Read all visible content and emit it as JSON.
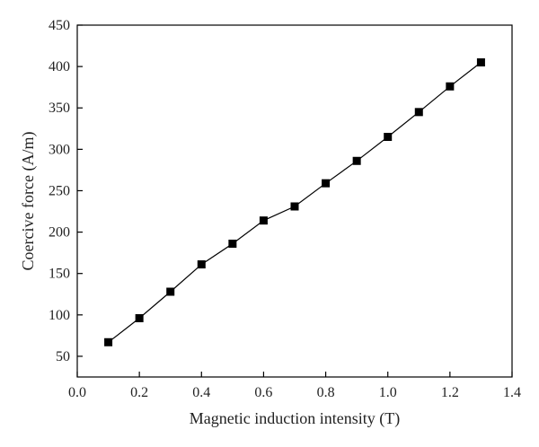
{
  "chart_data": {
    "type": "line",
    "xlabel": "Magnetic induction intensity (T)",
    "ylabel": "Coercive force (A/m)",
    "xlim": [
      0.0,
      1.4
    ],
    "ylim": [
      25,
      450
    ],
    "x_ticks": [
      "0.0",
      "0.2",
      "0.4",
      "0.6",
      "0.8",
      "1.0",
      "1.2",
      "1.4"
    ],
    "y_ticks": [
      "50",
      "100",
      "150",
      "200",
      "250",
      "300",
      "350",
      "400",
      "450"
    ],
    "grid": false,
    "marker": "square",
    "line_color": "#000000",
    "series": [
      {
        "x": [
          0.1,
          0.2,
          0.3,
          0.4,
          0.5,
          0.6,
          0.7,
          0.8,
          0.9,
          1.0,
          1.1,
          1.2,
          1.3
        ],
        "values": [
          67,
          96,
          128,
          161,
          186,
          214,
          231,
          259,
          286,
          315,
          345,
          376,
          405
        ]
      }
    ]
  }
}
